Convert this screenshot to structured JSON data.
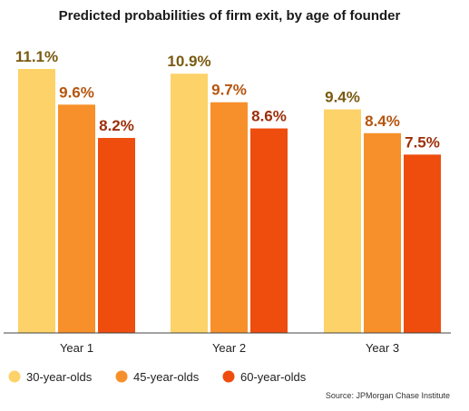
{
  "chart_data": {
    "type": "bar",
    "title": "Predicted probabilities of firm exit, by age of founder",
    "categories": [
      "Year 1",
      "Year 2",
      "Year 3"
    ],
    "series": [
      {
        "name": "30-year-olds",
        "values": [
          11.1,
          10.9,
          9.4
        ],
        "labels": [
          "11.1%",
          "10.9%",
          "9.4%"
        ],
        "color": "#FDD268",
        "label_color": "#7A5A10"
      },
      {
        "name": "45-year-olds",
        "values": [
          9.6,
          9.7,
          8.4
        ],
        "labels": [
          "9.6%",
          "9.7%",
          "8.4%"
        ],
        "color": "#F7902A",
        "label_color": "#B5560F"
      },
      {
        "name": "60-year-olds",
        "values": [
          8.2,
          8.6,
          7.5
        ],
        "labels": [
          "8.2%",
          "8.6%",
          "7.5%"
        ],
        "color": "#EE4D0E",
        "label_color": "#9C2F0A"
      }
    ],
    "ylim": [
      0,
      11.1
    ],
    "xlabel": "",
    "ylabel": "",
    "grid": false,
    "legend": "bottom-left",
    "source": "Source: JPMorgan Chase Institute"
  }
}
